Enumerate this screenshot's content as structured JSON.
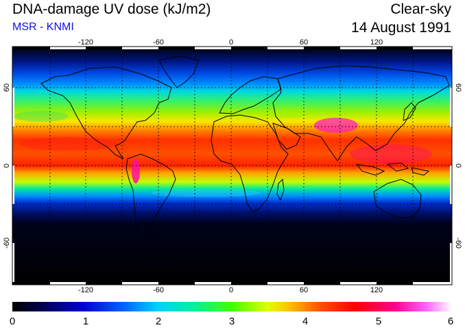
{
  "header": {
    "title": "DNA-damage UV dose (kJ/m2)",
    "source": "MSR - KNMI",
    "condition": "Clear-sky",
    "date": "14 August 1991"
  },
  "map": {
    "projection": "equirectangular",
    "lon_range": [
      -180,
      180
    ],
    "lat_range": [
      -90,
      90
    ],
    "lon_ticks": [
      "-120",
      "-60",
      "0",
      "60",
      "120"
    ],
    "lat_ticks": [
      "60",
      "0",
      "-60"
    ],
    "coastlines": "black",
    "graticule": "dotted"
  },
  "colorbar": {
    "ticks": [
      "0",
      "1",
      "2",
      "3",
      "4",
      "5",
      "6"
    ],
    "range": [
      0,
      6
    ],
    "colors": [
      "#000000",
      "#0000aa",
      "#0044ff",
      "#00ccff",
      "#00ff88",
      "#66ff00",
      "#ffff00",
      "#ffaa00",
      "#ff4400",
      "#ff0000",
      "#ff0088",
      "#ff44ff",
      "#ffffff"
    ]
  }
}
